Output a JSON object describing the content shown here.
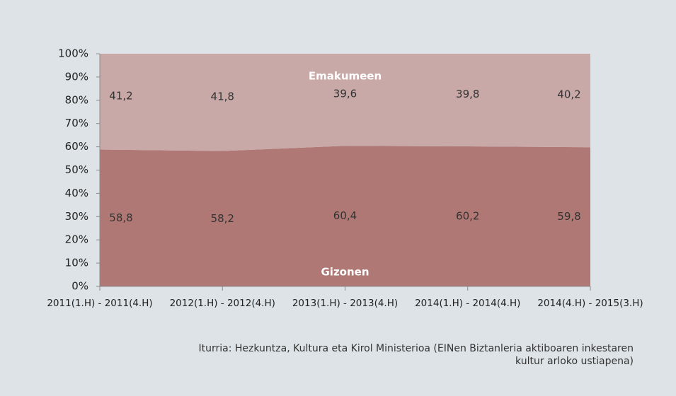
{
  "chart_data": {
    "type": "stacked_area",
    "categories": [
      "2011(1.H) - 2011(4.H)",
      "2012(1.H) - 2012(4.H)",
      "2013(1.H) - 2013(4.H)",
      "2014(1.H) - 2014(4.H)",
      "2014(4.H) - 2015(3.H)"
    ],
    "series": [
      {
        "name": "Gizonen",
        "color": "#b07874",
        "values": [
          58.8,
          58.2,
          60.4,
          60.2,
          59.8
        ],
        "value_labels": [
          "58,8",
          "58,2",
          "60,4",
          "60,2",
          "59,8"
        ]
      },
      {
        "name": "Emakumeen",
        "color": "#c9a8a8",
        "values": [
          41.2,
          41.8,
          39.6,
          39.8,
          40.2
        ],
        "value_labels": [
          "41,2",
          "41,8",
          "39,6",
          "39,8",
          "40,2"
        ]
      }
    ],
    "ylim": [
      0,
      100
    ],
    "yticks": [
      {
        "value": 0,
        "label": "0%"
      },
      {
        "value": 10,
        "label": "10%"
      },
      {
        "value": 20,
        "label": "20%"
      },
      {
        "value": 30,
        "label": "30%"
      },
      {
        "value": 40,
        "label": "40%"
      },
      {
        "value": 50,
        "label": "50%"
      },
      {
        "value": 60,
        "label": "60%"
      },
      {
        "value": 70,
        "label": "70%"
      },
      {
        "value": 80,
        "label": "80%"
      },
      {
        "value": 90,
        "label": "90%"
      },
      {
        "value": 100,
        "label": "100%"
      }
    ],
    "source": [
      "Iturria: Hezkuntza, Kultura eta Kirol Ministerioa (EINen Biztanleria aktiboaren inkestaren",
      "kultur arloko ustiapena)"
    ]
  }
}
